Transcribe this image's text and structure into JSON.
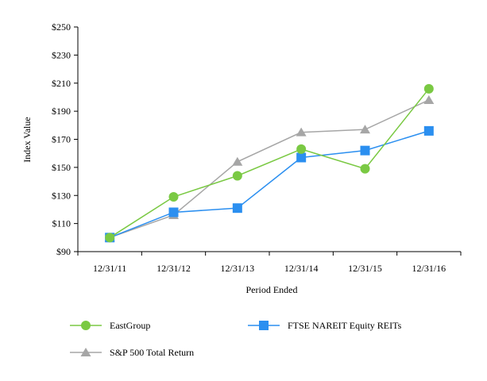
{
  "chart_data": {
    "type": "line",
    "title": "",
    "xlabel": "Period Ended",
    "ylabel": "Index Value",
    "categories": [
      "12/31/11",
      "12/31/12",
      "12/31/13",
      "12/31/14",
      "12/31/15",
      "12/31/16"
    ],
    "ylim": [
      90,
      250
    ],
    "yticks": [
      90,
      110,
      130,
      150,
      170,
      190,
      210,
      230,
      250
    ],
    "ytick_labels": [
      "$90",
      "$110",
      "$130",
      "$150",
      "$170",
      "$190",
      "$210",
      "$230",
      "$250"
    ],
    "grid": false,
    "legend_position": "bottom",
    "series": [
      {
        "name": "EastGroup",
        "marker": "circle",
        "color": "#7ac943",
        "values": [
          100,
          129,
          144,
          163,
          149,
          206
        ]
      },
      {
        "name": "FTSE NAREIT Equity REITs",
        "marker": "square",
        "color": "#2b8ff0",
        "values": [
          100,
          118,
          121,
          157,
          162,
          176
        ]
      },
      {
        "name": "S&P 500 Total Return",
        "marker": "triangle",
        "color": "#a6a6a6",
        "values": [
          100,
          116,
          154,
          175,
          177,
          198
        ]
      }
    ]
  }
}
